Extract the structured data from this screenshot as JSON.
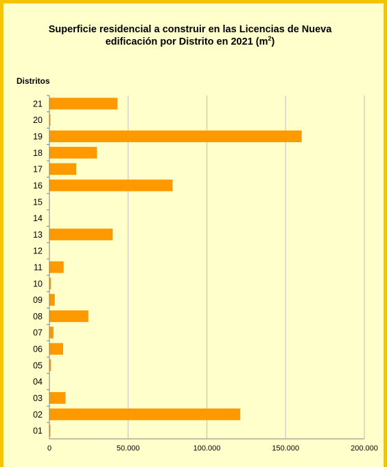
{
  "chart_data": {
    "type": "bar",
    "orientation": "horizontal",
    "title_line1": "Superficie residencial a construir en las Licencias de Nueva",
    "title_line2": "edificación por Distrito en 2021 (m",
    "title_sup": "2",
    "title_end": ")",
    "ylabel": "Distritos",
    "xlabel": "",
    "categories": [
      "01",
      "02",
      "03",
      "04",
      "05",
      "06",
      "07",
      "08",
      "09",
      "10",
      "11",
      "12",
      "13",
      "14",
      "15",
      "16",
      "17",
      "18",
      "19",
      "20",
      "21"
    ],
    "values": [
      200,
      121000,
      10000,
      0,
      800,
      8500,
      2400,
      24500,
      3200,
      800,
      8800,
      0,
      40000,
      0,
      0,
      78000,
      16800,
      30000,
      160000,
      200,
      43000
    ],
    "xlim": [
      0,
      200000
    ],
    "xticks": [
      0,
      50000,
      100000,
      150000,
      200000
    ],
    "xtick_labels": [
      "0",
      "50.000",
      "100.000",
      "150.000",
      "200.000"
    ],
    "grid": "vertical",
    "bar_color": "#ff9900",
    "background_color": "#ffffcc",
    "border_color": "#f5c400"
  }
}
